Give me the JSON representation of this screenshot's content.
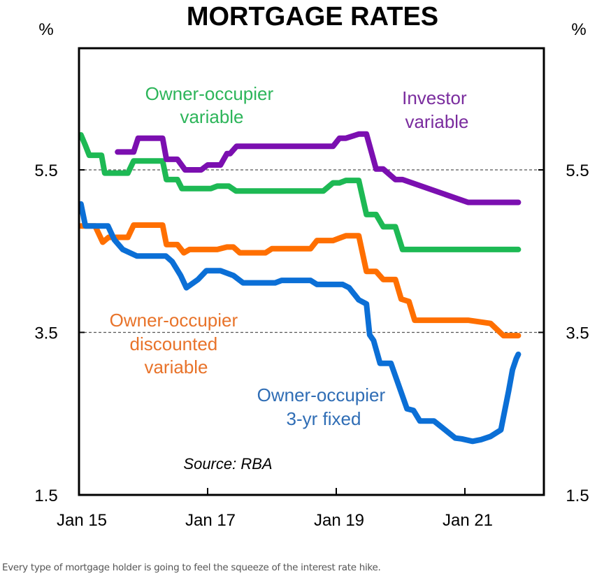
{
  "chart_data": {
    "type": "line",
    "title": "MORTGAGE RATES",
    "ylabel_left": "%",
    "ylabel_right": "%",
    "xlabel": "",
    "ylim": [
      1.5,
      6.5
    ],
    "xlim": [
      2015.0,
      2022.2
    ],
    "yticks": [
      1.5,
      3.5,
      5.5
    ],
    "ytick_labels": [
      "1.5",
      "3.5",
      "5.5"
    ],
    "xticks": [
      2015,
      2017,
      2019,
      2021
    ],
    "xtick_labels": [
      "Jan 15",
      "Jan 17",
      "Jan 19",
      "Jan 21"
    ],
    "gridlines": [
      3.5,
      5.5
    ],
    "grid_style": "dashed",
    "source": "Source: RBA",
    "series": [
      {
        "name": "Owner-occupier variable",
        "label_lines": [
          "Owner-occupier",
          "variable"
        ],
        "color": "#1DB954",
        "x": [
          2015.03,
          2015.1,
          2015.16,
          2015.35,
          2015.4,
          2015.76,
          2015.85,
          2016.3,
          2016.36,
          2016.53,
          2016.6,
          2017.05,
          2017.15,
          2017.33,
          2017.44,
          2017.9,
          2018.05,
          2018.2,
          2018.3,
          2018.45,
          2018.65,
          2018.8,
          2018.95,
          2019.05,
          2019.15,
          2019.35,
          2019.47,
          2019.62,
          2019.73,
          2019.92,
          2020.03,
          2021.05,
          2021.5,
          2021.83
        ],
        "y": [
          5.93,
          5.8,
          5.68,
          5.68,
          5.46,
          5.46,
          5.61,
          5.61,
          5.38,
          5.38,
          5.27,
          5.27,
          5.3,
          5.3,
          5.24,
          5.24,
          5.24,
          5.24,
          5.24,
          5.24,
          5.24,
          5.24,
          5.34,
          5.34,
          5.37,
          5.37,
          4.95,
          4.95,
          4.8,
          4.8,
          4.52,
          4.52,
          4.52,
          4.52
        ]
      },
      {
        "name": "Investor variable",
        "label_lines": [
          "Investor",
          "variable"
        ],
        "color": "#7B0FB0",
        "x": [
          2015.6,
          2015.85,
          2015.92,
          2016.3,
          2016.36,
          2016.53,
          2016.65,
          2016.9,
          2017.0,
          2017.2,
          2017.3,
          2017.35,
          2017.45,
          2017.9,
          2018.3,
          2018.5,
          2018.62,
          2018.95,
          2019.05,
          2019.15,
          2019.35,
          2019.47,
          2019.62,
          2019.73,
          2019.92,
          2020.03,
          2021.05,
          2021.5,
          2021.83
        ],
        "y": [
          5.72,
          5.72,
          5.89,
          5.89,
          5.63,
          5.63,
          5.5,
          5.5,
          5.56,
          5.56,
          5.7,
          5.7,
          5.79,
          5.79,
          5.79,
          5.79,
          5.79,
          5.79,
          5.89,
          5.89,
          5.94,
          5.94,
          5.51,
          5.51,
          5.38,
          5.38,
          5.1,
          5.1,
          5.1
        ]
      },
      {
        "name": "Owner-occupier discounted variable",
        "label_lines": [
          "Owner-occupier",
          "discounted",
          "variable"
        ],
        "color": "#FF6F00",
        "x": [
          2015.03,
          2015.25,
          2015.37,
          2015.46,
          2015.76,
          2015.85,
          2016.3,
          2016.36,
          2016.53,
          2016.63,
          2016.72,
          2017.15,
          2017.3,
          2017.4,
          2017.5,
          2017.9,
          2018.0,
          2018.6,
          2018.7,
          2018.95,
          2019.05,
          2019.15,
          2019.35,
          2019.47,
          2019.62,
          2019.73,
          2019.92,
          2020.01,
          2020.13,
          2020.22,
          2020.9,
          2021.05,
          2021.4,
          2021.6,
          2021.83
        ],
        "y": [
          4.81,
          4.81,
          4.61,
          4.67,
          4.67,
          4.82,
          4.82,
          4.58,
          4.58,
          4.48,
          4.52,
          4.52,
          4.55,
          4.55,
          4.48,
          4.48,
          4.53,
          4.53,
          4.63,
          4.63,
          4.66,
          4.69,
          4.69,
          4.25,
          4.25,
          4.15,
          4.15,
          3.91,
          3.88,
          3.65,
          3.65,
          3.65,
          3.61,
          3.46,
          3.46
        ]
      },
      {
        "name": "Owner-occupier 3-yr fixed",
        "label_lines": [
          "Owner-occupier",
          "3-yr fixed"
        ],
        "color": "#0B6FD6",
        "x": [
          2015.03,
          2015.1,
          2015.45,
          2015.55,
          2015.68,
          2015.9,
          2016.35,
          2016.45,
          2016.58,
          2016.67,
          2016.85,
          2016.98,
          2017.2,
          2017.4,
          2017.55,
          2018.05,
          2018.15,
          2018.6,
          2018.7,
          2019.1,
          2019.2,
          2019.35,
          2019.47,
          2019.52,
          2019.58,
          2019.68,
          2019.78,
          2019.85,
          2020.1,
          2020.2,
          2020.3,
          2020.42,
          2020.52,
          2020.85,
          2020.95,
          2021.12,
          2021.25,
          2021.4,
          2021.56,
          2021.68,
          2021.74,
          2021.8,
          2021.83
        ],
        "y": [
          5.08,
          4.81,
          4.81,
          4.64,
          4.52,
          4.44,
          4.44,
          4.37,
          4.2,
          4.05,
          4.15,
          4.26,
          4.26,
          4.2,
          4.11,
          4.11,
          4.14,
          4.14,
          4.09,
          4.09,
          4.05,
          3.9,
          3.85,
          3.47,
          3.4,
          3.12,
          3.12,
          3.12,
          2.56,
          2.54,
          2.41,
          2.41,
          2.41,
          2.2,
          2.19,
          2.16,
          2.18,
          2.22,
          2.3,
          2.78,
          3.04,
          3.18,
          3.23
        ]
      }
    ]
  },
  "caption": "Every type of mortgage holder is going to feel the squeeze of the interest rate hike."
}
